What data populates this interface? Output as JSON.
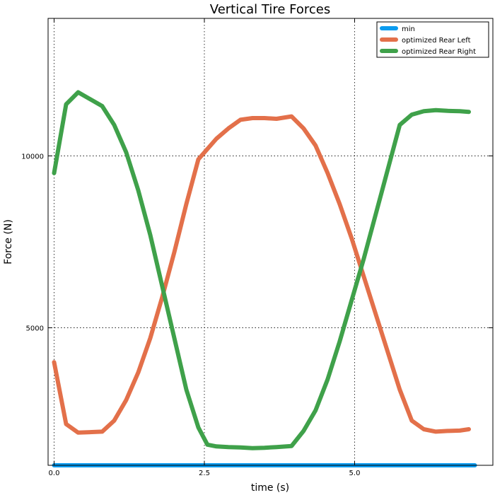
{
  "chart_data": {
    "type": "line",
    "title": "Vertical Tire Forces",
    "xlabel": "time (s)",
    "ylabel": "Force (N)",
    "xlim": [
      -0.1,
      7.3
    ],
    "ylim": [
      1000,
      14000
    ],
    "x_ticks": [
      0,
      2.5,
      5
    ],
    "x_tick_labels": [
      "0.0",
      "2.5",
      "5.0"
    ],
    "y_ticks": [
      5000,
      10000
    ],
    "y_tick_labels": [
      "5000",
      "10000"
    ],
    "grid": true,
    "legend_position": "top-right",
    "series": [
      {
        "name": "min",
        "color": "#0A9BEF",
        "x": [
          0,
          7.0
        ],
        "y": [
          1000,
          1000
        ]
      },
      {
        "name": "optimized Rear Left",
        "color": "#E3704A",
        "x": [
          0,
          0.2,
          0.4,
          0.8,
          1.0,
          1.2,
          1.4,
          1.6,
          1.8,
          2.0,
          2.2,
          2.4,
          2.55,
          2.7,
          2.9,
          3.1,
          3.3,
          3.5,
          3.7,
          3.95,
          4.15,
          4.35,
          4.55,
          4.75,
          4.95,
          5.15,
          5.35,
          5.55,
          5.75,
          5.95,
          6.15,
          6.35,
          6.55,
          6.75,
          6.9
        ],
        "y": [
          4000,
          2200,
          1950,
          1980,
          2300,
          2900,
          3700,
          4700,
          5900,
          7200,
          8600,
          9900,
          10200,
          10500,
          10800,
          11050,
          11100,
          11100,
          11080,
          11150,
          10800,
          10300,
          9500,
          8600,
          7600,
          6500,
          5400,
          4300,
          3200,
          2300,
          2050,
          1980,
          2000,
          2010,
          2050
        ]
      },
      {
        "name": "optimized Rear Right",
        "color": "#3FA14A",
        "x": [
          0,
          0.2,
          0.4,
          0.8,
          1.0,
          1.2,
          1.4,
          1.6,
          1.8,
          2.0,
          2.2,
          2.4,
          2.55,
          2.7,
          2.9,
          3.1,
          3.3,
          3.5,
          3.7,
          3.95,
          4.15,
          4.35,
          4.55,
          4.75,
          4.95,
          5.15,
          5.35,
          5.55,
          5.75,
          5.95,
          6.15,
          6.35,
          6.55,
          6.75,
          6.9
        ],
        "y": [
          9500,
          11500,
          11850,
          11450,
          10900,
          10100,
          9000,
          7700,
          6200,
          4700,
          3200,
          2100,
          1600,
          1550,
          1530,
          1520,
          1500,
          1510,
          1530,
          1560,
          2000,
          2600,
          3500,
          4600,
          5800,
          7000,
          8300,
          9600,
          10900,
          11200,
          11300,
          11330,
          11310,
          11300,
          11280
        ]
      }
    ]
  }
}
